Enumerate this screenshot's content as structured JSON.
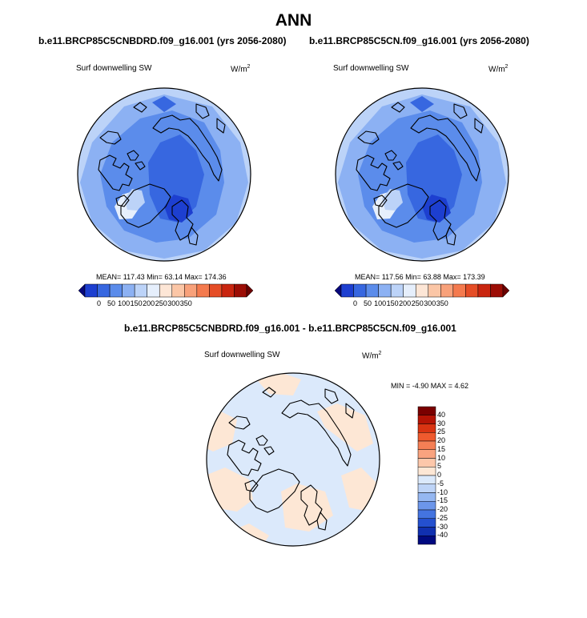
{
  "title": "ANN",
  "panel1": {
    "title": "b.e11.BRCP85C5CNBDRD.f09_g16.001 (yrs 2056-2080)",
    "variable": "Surf downwelling SW",
    "units_base": "W/m",
    "units_exp": "2",
    "stats": "MEAN= 117.43  Min=  63.14  Max= 174.36"
  },
  "panel2": {
    "title": "b.e11.BRCP85C5CN.f09_g16.001 (yrs 2056-2080)",
    "variable": "Surf downwelling SW",
    "units_base": "W/m",
    "units_exp": "2",
    "stats": "MEAN= 117.56  Min=  63.88  Max= 173.39"
  },
  "panel3": {
    "title": "b.e11.BRCP85C5CNBDRD.f09_g16.001 - b.e11.BRCP85C5CN.f09_g16.001",
    "variable": "Surf downwelling SW",
    "units_base": "W/m",
    "units_exp": "2",
    "stats": "MIN =  -4.90 MAX =   4.62"
  },
  "colorbar_main": {
    "labels": [
      "0",
      "50",
      "100",
      "150",
      "200",
      "250",
      "300",
      "350"
    ],
    "colors": [
      "#08087a",
      "#1d3fd0",
      "#3767e0",
      "#5b8ceb",
      "#8cb1f3",
      "#bcd3f8",
      "#e6effc",
      "#fde6d6",
      "#fbc6a6",
      "#f8a17a",
      "#f47a4e",
      "#e54d26",
      "#c9250f",
      "#9c0d05",
      "#6b0202"
    ]
  },
  "colorbar_diff": {
    "labels": [
      "40",
      "30",
      "25",
      "20",
      "15",
      "10",
      "5",
      "0",
      "-5",
      "-10",
      "-15",
      "-20",
      "-25",
      "-30",
      "-40"
    ],
    "colors": [
      "#7a0000",
      "#b51405",
      "#d93412",
      "#ef5a2e",
      "#f57f55",
      "#f9a37f",
      "#fcc7aa",
      "#fde7d5",
      "#dbe9fb",
      "#bed4f7",
      "#95b7f1",
      "#6c96ea",
      "#4474e0",
      "#2450cf",
      "#1030b0",
      "#000a80"
    ]
  }
}
